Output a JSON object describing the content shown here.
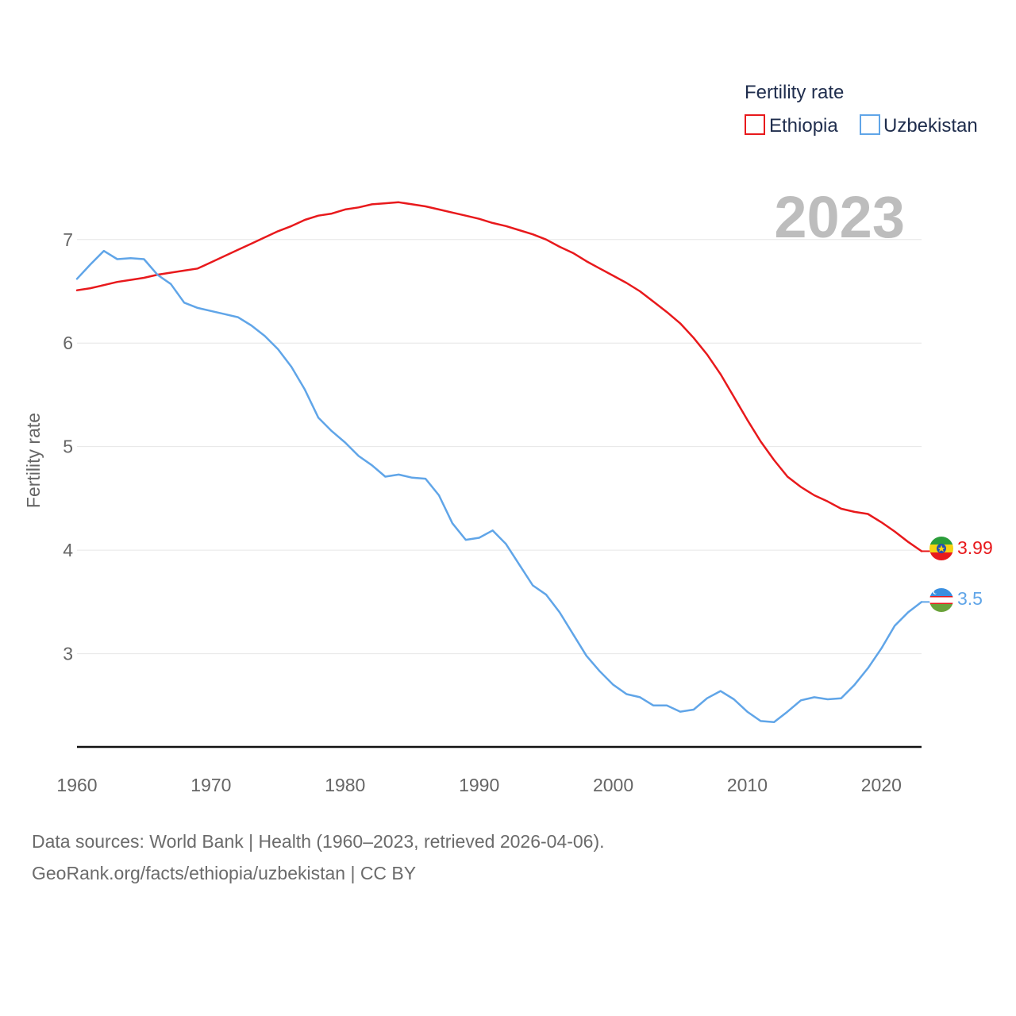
{
  "colors": {
    "Ethiopia": "#e8191c",
    "Uzbekistan": "#60a5e8",
    "grid": "#e6e6e6",
    "axis": "#111111"
  },
  "year_stamp": "2023",
  "legend": {
    "title": "Fertility rate",
    "items": [
      "Ethiopia",
      "Uzbekistan"
    ]
  },
  "end_labels": {
    "Ethiopia": "3.99",
    "Uzbekistan": "3.5"
  },
  "footer": {
    "line1": "Data sources: World Bank | Health (1960–2023, retrieved 2026-04-06).",
    "line2": "GeoRank.org/facts/ethiopia/uzbekistan | CC BY"
  },
  "chart_data": {
    "type": "line",
    "title": "Fertility rate",
    "xlabel": "",
    "ylabel": "Fertility rate",
    "xlim": [
      1960,
      2023
    ],
    "ylim": [
      2.1,
      7.55
    ],
    "yticks": [
      3,
      4,
      5,
      6,
      7
    ],
    "xticks": [
      1960,
      1970,
      1980,
      1990,
      2000,
      2010,
      2020
    ],
    "grid": true,
    "legend_position": "top-right",
    "x": [
      1960,
      1961,
      1962,
      1963,
      1964,
      1965,
      1966,
      1967,
      1968,
      1969,
      1970,
      1971,
      1972,
      1973,
      1974,
      1975,
      1976,
      1977,
      1978,
      1979,
      1980,
      1981,
      1982,
      1983,
      1984,
      1985,
      1986,
      1987,
      1988,
      1989,
      1990,
      1991,
      1992,
      1993,
      1994,
      1995,
      1996,
      1997,
      1998,
      1999,
      2000,
      2001,
      2002,
      2003,
      2004,
      2005,
      2006,
      2007,
      2008,
      2009,
      2010,
      2011,
      2012,
      2013,
      2014,
      2015,
      2016,
      2017,
      2018,
      2019,
      2020,
      2021,
      2022,
      2023
    ],
    "series": [
      {
        "name": "Ethiopia",
        "values": [
          6.51,
          6.53,
          6.56,
          6.59,
          6.61,
          6.63,
          6.66,
          6.68,
          6.7,
          6.72,
          6.78,
          6.84,
          6.9,
          6.96,
          7.02,
          7.08,
          7.13,
          7.19,
          7.23,
          7.25,
          7.29,
          7.31,
          7.34,
          7.35,
          7.36,
          7.34,
          7.32,
          7.29,
          7.26,
          7.23,
          7.2,
          7.16,
          7.13,
          7.09,
          7.05,
          7.0,
          6.93,
          6.87,
          6.79,
          6.72,
          6.65,
          6.58,
          6.5,
          6.4,
          6.3,
          6.19,
          6.05,
          5.89,
          5.7,
          5.48,
          5.26,
          5.05,
          4.87,
          4.71,
          4.61,
          4.53,
          4.47,
          4.4,
          4.37,
          4.35,
          4.27,
          4.18,
          4.08,
          3.99
        ]
      },
      {
        "name": "Uzbekistan",
        "values": [
          6.62,
          6.76,
          6.89,
          6.81,
          6.82,
          6.81,
          6.66,
          6.57,
          6.39,
          6.34,
          6.31,
          6.28,
          6.25,
          6.17,
          6.07,
          5.94,
          5.77,
          5.55,
          5.28,
          5.15,
          5.04,
          4.91,
          4.82,
          4.71,
          4.73,
          4.7,
          4.69,
          4.53,
          4.26,
          4.1,
          4.12,
          4.19,
          4.06,
          3.86,
          3.66,
          3.57,
          3.4,
          3.19,
          2.98,
          2.83,
          2.7,
          2.61,
          2.58,
          2.5,
          2.5,
          2.44,
          2.46,
          2.57,
          2.64,
          2.56,
          2.44,
          2.35,
          2.34,
          2.44,
          2.55,
          2.58,
          2.56,
          2.57,
          2.7,
          2.86,
          3.05,
          3.27,
          3.4,
          3.5
        ]
      }
    ]
  }
}
